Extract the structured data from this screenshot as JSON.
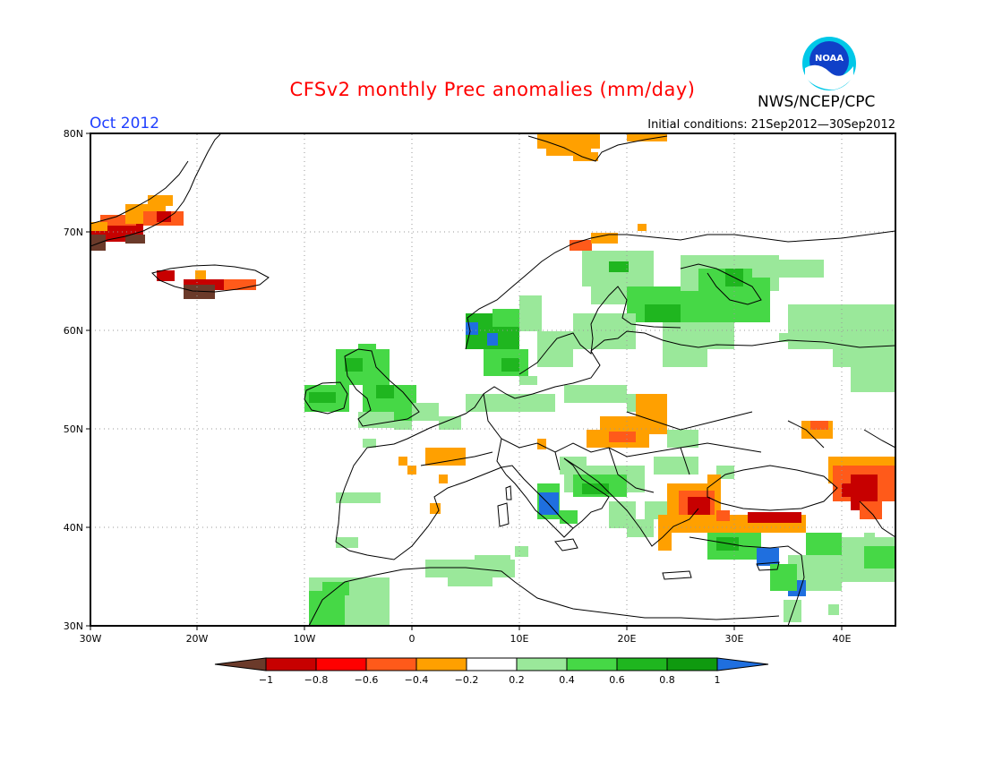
{
  "header": {
    "title": "CFSv2 monthly Prec anomalies (mm/day)",
    "agency": "NWS/NCEP/CPC",
    "month": "Oct 2012",
    "initial_conditions": "Initial conditions: 21Sep2012—30Sep2012",
    "logo_text": "NOAA"
  },
  "map": {
    "projection": "lat-lon",
    "lon_range": [
      -30,
      45
    ],
    "lat_range": [
      30,
      80
    ],
    "lat_labels": [
      "80N",
      "70N",
      "60N",
      "50N",
      "40N",
      "30N"
    ],
    "lon_labels": [
      "30W",
      "20W",
      "10W",
      "0",
      "10E",
      "20E",
      "30E",
      "40E"
    ],
    "grid": "dotted",
    "anomaly_regions": [
      {
        "name": "Greenland coast",
        "color": "#ff5a1a"
      },
      {
        "name": "Iceland",
        "color": "#c70000"
      },
      {
        "name": "British Isles",
        "color": "#46d846"
      },
      {
        "name": "Scandinavia / NW Russia",
        "color": "#46d846"
      },
      {
        "name": "Poland / Carpathians",
        "color": "#ffa000"
      },
      {
        "name": "Turkey / Caucasus",
        "color": "#c70000"
      },
      {
        "name": "Italy / Balkans",
        "color": "#46d846"
      },
      {
        "name": "North Africa",
        "color": "#46d846"
      }
    ]
  },
  "colorbar": {
    "labels": [
      "−1",
      "−0.8",
      "−0.6",
      "−0.4",
      "−0.2",
      "0.2",
      "0.4",
      "0.6",
      "0.8",
      "1"
    ],
    "colors": [
      "#6b3a2a",
      "#c70000",
      "#ff5a1a",
      "#ffa000",
      "#ffffff",
      "#9ae89a",
      "#46d846",
      "#1fb61f",
      "#0f9a0f",
      "#1f6fdf"
    ]
  }
}
